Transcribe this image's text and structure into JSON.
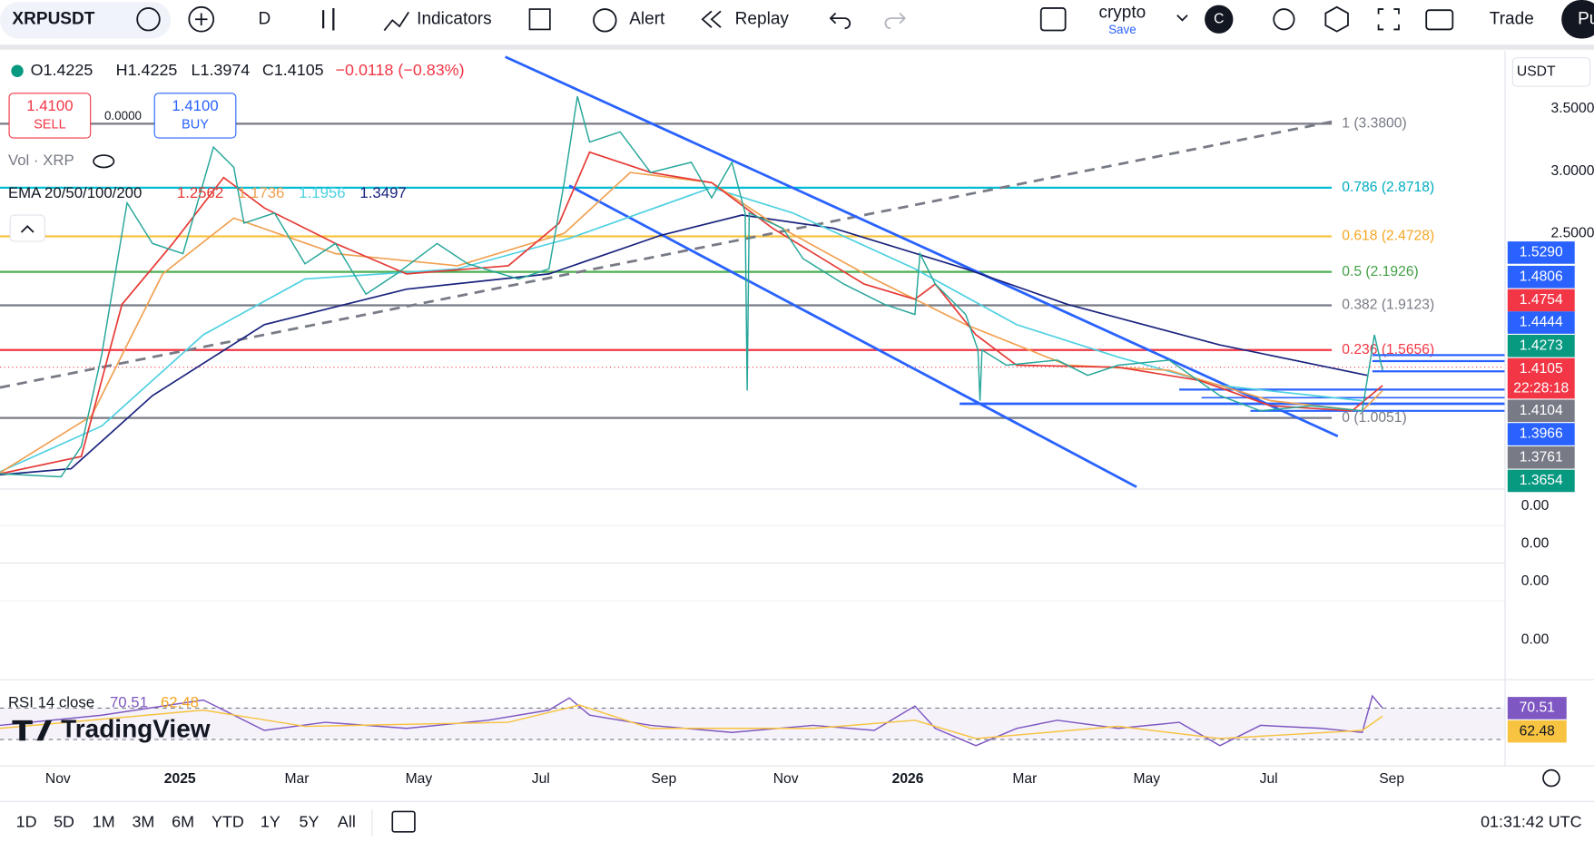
{
  "toolbar": {
    "symbol": "XRPUSDT",
    "interval": "D",
    "items": [
      "Indicators",
      "Alert",
      "Replay"
    ],
    "layout": {
      "name": "crypto",
      "status": "Save"
    },
    "avatar": "C",
    "trade": "Trade",
    "more": "Pu"
  },
  "legend": {
    "open": "O1.4225",
    "high": "H1.4225",
    "low": "L1.3974",
    "close": "C1.4105",
    "change": "−0.0118 (−0.83%)"
  },
  "trade": {
    "sell_price": "1.4100",
    "sell": "SELL",
    "spread": "0.0000",
    "buy_price": "1.4100",
    "buy": "BUY"
  },
  "volume": "Vol · XRP",
  "ema": {
    "name": "EMA 20/50/100/200",
    "values": [
      "1.2562",
      "1.1736",
      "1.1956",
      "1.3497"
    ]
  },
  "fib": [
    "1 (3.3800)",
    "0.786 (2.8718)",
    "0.618 (2.4728)",
    "0.5 (2.1926)",
    "0.382 (1.9123)",
    "0.236 (1.5656)",
    "0 (1.0051)"
  ],
  "price_axis": {
    "currency": "USDT",
    "ticks": [
      "3.5000",
      "3.0000",
      "2.5000"
    ],
    "tags": [
      "1.5290",
      "1.4806",
      "1.4754",
      "1.4444",
      "1.4273",
      "1.4105",
      "1.4104",
      "1.3966",
      "1.3761",
      "1.3654"
    ],
    "countdown": "22:28:18"
  },
  "panes": [
    "0.00",
    "0.00",
    "0.00",
    "0.00"
  ],
  "rsi": {
    "name": "RSI 14 close",
    "values": [
      "70.51",
      "62.48"
    ]
  },
  "logo": "TradingView",
  "time_axis": [
    "Nov",
    "2025",
    "Mar",
    "May",
    "Jul",
    "Sep",
    "Nov",
    "2026",
    "Mar",
    "May",
    "Jul",
    "Sep"
  ],
  "ranges": [
    "1D",
    "5D",
    "1M",
    "3M",
    "6M",
    "YTD",
    "1Y",
    "5Y",
    "All"
  ],
  "clock": "01:31:42 UTC"
}
